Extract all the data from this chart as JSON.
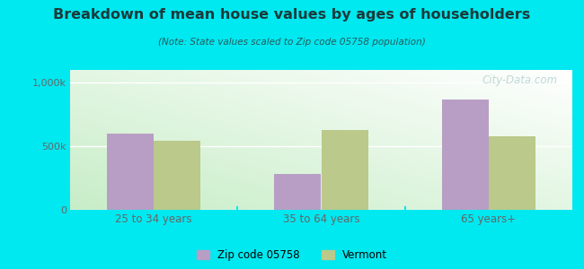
{
  "title": "Breakdown of mean house values by ages of householders",
  "subtitle": "(Note: State values scaled to Zip code 05758 population)",
  "categories": [
    "25 to 34 years",
    "35 to 64 years",
    "65 years+"
  ],
  "zip_values": [
    600000,
    280000,
    870000
  ],
  "state_values": [
    540000,
    630000,
    580000
  ],
  "zip_color": "#b89ec4",
  "state_color": "#bbc98a",
  "bg_outer": "#00e8f0",
  "yticks": [
    0,
    500000,
    1000000
  ],
  "ytick_labels": [
    "0",
    "500k",
    "1,000k"
  ],
  "ylim": [
    0,
    1100000
  ],
  "legend_zip": "Zip code 05758",
  "legend_state": "Vermont",
  "watermark": "City-Data.com",
  "title_color": "#1a3a3a",
  "subtitle_color": "#2a5a5a",
  "tick_color": "#666666",
  "grid_color": "#ffffff"
}
